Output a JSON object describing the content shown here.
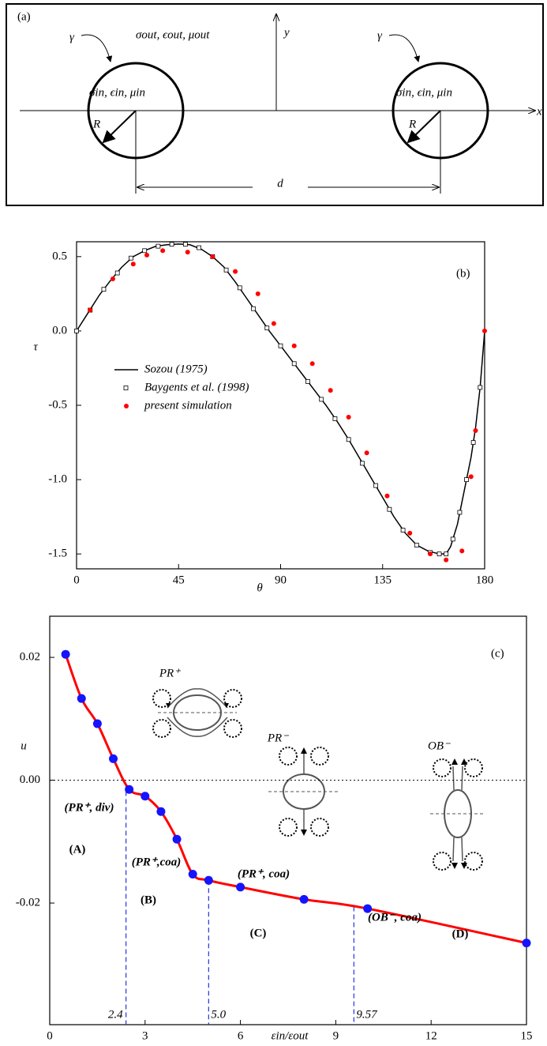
{
  "panel_a": {
    "label": "(a)",
    "outer": "σout, ϵout, μout",
    "y_axis": "y",
    "x_axis": "x",
    "interface": [
      "γ",
      "γ"
    ],
    "inner": [
      "σin, ϵin, μin",
      "σin, ϵin, μin"
    ],
    "radius": [
      "R",
      "R"
    ],
    "distance": "d"
  },
  "chart_data": [
    {
      "type": "line",
      "label": "(b)",
      "xlabel": "θ",
      "ylabel": "τ",
      "xlim": [
        0,
        180
      ],
      "ylim": [
        -1.6,
        0.6
      ],
      "xticks": [
        0,
        45,
        90,
        135,
        180
      ],
      "yticks": [
        -1.5,
        {
          "value": -1,
          "label": "-1.0"
        },
        -0.5,
        {
          "value": 0,
          "label": "0.0"
        },
        0.5
      ],
      "series": [
        {
          "name": "Sozou (1975)",
          "color": "#000000",
          "marker": "none",
          "x": [
            0,
            5,
            10,
            15,
            20,
            25,
            30,
            35,
            40,
            45,
            50,
            55,
            60,
            65,
            70,
            75,
            80,
            85,
            90,
            95,
            100,
            105,
            110,
            115,
            120,
            125,
            130,
            135,
            140,
            145,
            150,
            155,
            160,
            163,
            165,
            168,
            170,
            172,
            174,
            176,
            178,
            180
          ],
          "values": [
            0,
            0.12,
            0.24,
            0.34,
            0.43,
            0.5,
            0.54,
            0.57,
            0.58,
            0.585,
            0.58,
            0.55,
            0.5,
            0.43,
            0.33,
            0.22,
            0.11,
            0,
            -0.1,
            -0.2,
            -0.3,
            -0.4,
            -0.5,
            -0.61,
            -0.73,
            -0.86,
            -0.99,
            -1.12,
            -1.25,
            -1.36,
            -1.44,
            -1.48,
            -1.5,
            -1.5,
            -1.45,
            -1.3,
            -1.15,
            -1.0,
            -0.85,
            -0.65,
            -0.38,
            0
          ]
        },
        {
          "name": "Baygents et al. (1998)",
          "color": "#000000",
          "marker": "square",
          "x": [
            0,
            6,
            12,
            18,
            24,
            30,
            36,
            42,
            48,
            54,
            60,
            66,
            72,
            78,
            84,
            90,
            96,
            102,
            108,
            114,
            120,
            126,
            132,
            138,
            144,
            150,
            156,
            160,
            163,
            166,
            169,
            172,
            175,
            178
          ],
          "values": [
            0,
            0.14,
            0.28,
            0.39,
            0.49,
            0.54,
            0.57,
            0.583,
            0.583,
            0.56,
            0.5,
            0.41,
            0.29,
            0.15,
            0.02,
            -0.1,
            -0.22,
            -0.34,
            -0.46,
            -0.59,
            -0.73,
            -0.89,
            -1.04,
            -1.2,
            -1.34,
            -1.44,
            -1.49,
            -1.5,
            -1.5,
            -1.4,
            -1.22,
            -1.0,
            -0.75,
            -0.38
          ]
        },
        {
          "name": "present simulation",
          "color": "#ff0000",
          "marker": "circle",
          "x": [
            6,
            16,
            25,
            31,
            38,
            49,
            60,
            70,
            80,
            87,
            96,
            104,
            112,
            120,
            128,
            137,
            147,
            156,
            163,
            170,
            174,
            176,
            180
          ],
          "values": [
            0.14,
            0.35,
            0.45,
            0.51,
            0.54,
            0.53,
            0.5,
            0.4,
            0.25,
            0.05,
            -0.1,
            -0.22,
            -0.4,
            -0.58,
            -0.82,
            -1.11,
            -1.36,
            -1.5,
            -1.54,
            -1.48,
            -0.98,
            -0.67,
            0
          ]
        }
      ]
    },
    {
      "type": "line",
      "label": "(c)",
      "xlabel": "εin/εout",
      "ylabel": "u",
      "xlim": [
        0,
        15
      ],
      "ylim": [
        -0.0398,
        0.0267
      ],
      "xticks": [
        0,
        3,
        6,
        9,
        12,
        15
      ],
      "yticks": [
        -0.02,
        {
          "value": 0,
          "label": "0.00"
        },
        0.02
      ],
      "series": [
        {
          "color": "#1414ff",
          "line_color": "#ff0000",
          "x": [
            0.5,
            1,
            1.5,
            2,
            2.5,
            3,
            3.5,
            4,
            4.5,
            5,
            6,
            8,
            10,
            15
          ],
          "values": [
            0.0205,
            0.0133,
            0.0092,
            0.0035,
            -0.0015,
            -0.0026,
            -0.0051,
            -0.0096,
            -0.0153,
            -0.0163,
            -0.0174,
            -0.0194,
            -0.0209,
            -0.0265
          ]
        }
      ],
      "thresholds": [
        2.4,
        {
          "value": 5,
          "label": "5.0"
        },
        9.57
      ],
      "regions": [
        "(PR⁺, div)",
        "(A)",
        "(PR⁺,coa)",
        "(B)",
        "(PR⁺, coa)",
        "(C)",
        "(OB⁻, coa)",
        "(D)"
      ],
      "insets": [
        "PR⁺",
        "PR⁻",
        "OB⁻"
      ]
    }
  ]
}
